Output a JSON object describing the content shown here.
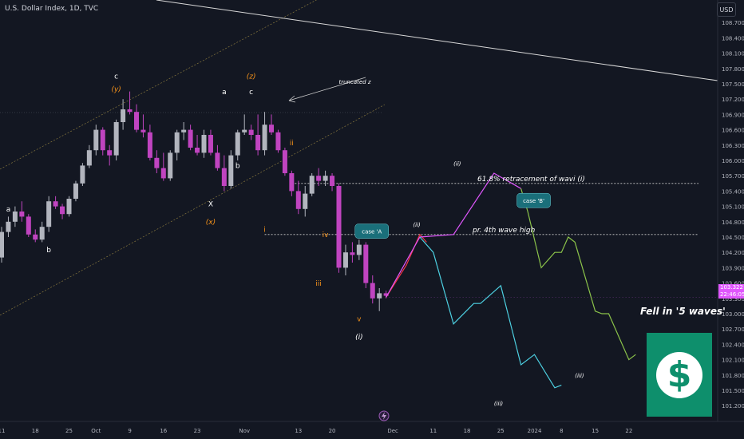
{
  "header": {
    "title": "U.S. Dollar Index, 1D, TVC",
    "currency": "USD"
  },
  "price_tag": {
    "value": "103.322",
    "countdown": "22:46:05"
  },
  "overlay": {
    "fell_text": "Fell in '5 waves'",
    "dollar_symbol": "$"
  },
  "colors": {
    "background": "#131722",
    "bull": "#b2b5be",
    "bear": "#c044c0",
    "orange": "#f7931a",
    "pink": "#e056fd",
    "red": "#f23645",
    "cyan": "#4dd0e1",
    "green": "#8bc34a",
    "teal_callout": "#1a6f7a",
    "dollar_green": "#0e8f6c"
  },
  "chart_data": {
    "type": "candlestick",
    "title": "U.S. Dollar Index, 1D, TVC",
    "ylim": [
      101.0,
      109.0
    ],
    "y_ticks": [
      101.2,
      101.5,
      101.8,
      102.1,
      102.4,
      102.7,
      103.0,
      103.3,
      103.6,
      103.9,
      104.2,
      104.5,
      104.8,
      105.1,
      105.4,
      105.7,
      106.0,
      106.3,
      106.6,
      106.9,
      107.2,
      107.5,
      107.8,
      108.1,
      108.4,
      108.7
    ],
    "y_tick_labels": [
      "101.200",
      "101.500",
      "101.800",
      "102.100",
      "102.400",
      "102.700",
      "103.000",
      "103.300",
      "103.600",
      "103.900",
      "104.200",
      "104.500",
      "104.800",
      "105.100",
      "105.400",
      "105.700",
      "106.000",
      "106.300",
      "106.600",
      "106.900",
      "107.200",
      "107.500",
      "107.800",
      "108.100",
      "108.400",
      "108.700"
    ],
    "x_tick_labels": [
      {
        "label": "11",
        "day": 0
      },
      {
        "label": "18",
        "day": 5
      },
      {
        "label": "25",
        "day": 10
      },
      {
        "label": "Oct",
        "day": 14
      },
      {
        "label": "9",
        "day": 19
      },
      {
        "label": "16",
        "day": 24
      },
      {
        "label": "23",
        "day": 29
      },
      {
        "label": "Nov",
        "day": 36
      },
      {
        "label": "13",
        "day": 44
      },
      {
        "label": "20",
        "day": 49
      },
      {
        "label": "Dec",
        "day": 58
      },
      {
        "label": "11",
        "day": 64
      },
      {
        "label": "18",
        "day": 69
      },
      {
        "label": "25",
        "day": 74
      },
      {
        "label": "2024",
        "day": 79
      },
      {
        "label": "8",
        "day": 83
      },
      {
        "label": "15",
        "day": 88
      },
      {
        "label": "22",
        "day": 93
      }
    ],
    "candles": [
      {
        "o": 104.1,
        "h": 104.7,
        "l": 104.0,
        "c": 104.6
      },
      {
        "o": 104.6,
        "h": 104.9,
        "l": 104.5,
        "c": 104.8
      },
      {
        "o": 104.8,
        "h": 105.1,
        "l": 104.7,
        "c": 105.0
      },
      {
        "o": 105.0,
        "h": 105.2,
        "l": 104.8,
        "c": 104.9
      },
      {
        "o": 104.9,
        "h": 104.95,
        "l": 104.5,
        "c": 104.55
      },
      {
        "o": 104.55,
        "h": 104.65,
        "l": 104.4,
        "c": 104.45
      },
      {
        "o": 104.45,
        "h": 104.8,
        "l": 104.4,
        "c": 104.7
      },
      {
        "o": 104.7,
        "h": 105.3,
        "l": 104.6,
        "c": 105.2
      },
      {
        "o": 105.2,
        "h": 105.3,
        "l": 105.05,
        "c": 105.1
      },
      {
        "o": 105.1,
        "h": 105.15,
        "l": 104.85,
        "c": 104.95
      },
      {
        "o": 104.95,
        "h": 105.3,
        "l": 104.9,
        "c": 105.25
      },
      {
        "o": 105.25,
        "h": 105.6,
        "l": 105.2,
        "c": 105.55
      },
      {
        "o": 105.55,
        "h": 105.95,
        "l": 105.5,
        "c": 105.9
      },
      {
        "o": 105.9,
        "h": 106.3,
        "l": 105.85,
        "c": 106.2
      },
      {
        "o": 106.2,
        "h": 106.7,
        "l": 106.1,
        "c": 106.6
      },
      {
        "o": 106.6,
        "h": 106.65,
        "l": 106.1,
        "c": 106.2
      },
      {
        "o": 106.2,
        "h": 106.3,
        "l": 105.9,
        "c": 106.1
      },
      {
        "o": 106.1,
        "h": 106.8,
        "l": 106.0,
        "c": 106.75
      },
      {
        "o": 106.75,
        "h": 107.2,
        "l": 106.6,
        "c": 107.0
      },
      {
        "o": 107.0,
        "h": 107.35,
        "l": 106.9,
        "c": 106.95
      },
      {
        "o": 106.95,
        "h": 107.1,
        "l": 106.55,
        "c": 106.6
      },
      {
        "o": 106.6,
        "h": 106.9,
        "l": 106.45,
        "c": 106.55
      },
      {
        "o": 106.55,
        "h": 106.7,
        "l": 106.0,
        "c": 106.05
      },
      {
        "o": 106.05,
        "h": 106.2,
        "l": 105.75,
        "c": 105.85
      },
      {
        "o": 105.85,
        "h": 106.15,
        "l": 105.6,
        "c": 105.65
      },
      {
        "o": 105.65,
        "h": 106.2,
        "l": 105.6,
        "c": 106.15
      },
      {
        "o": 106.15,
        "h": 106.6,
        "l": 106.0,
        "c": 106.55
      },
      {
        "o": 106.55,
        "h": 106.75,
        "l": 106.4,
        "c": 106.6
      },
      {
        "o": 106.6,
        "h": 106.7,
        "l": 106.2,
        "c": 106.25
      },
      {
        "o": 106.25,
        "h": 106.5,
        "l": 106.1,
        "c": 106.15
      },
      {
        "o": 106.15,
        "h": 106.6,
        "l": 106.05,
        "c": 106.5
      },
      {
        "o": 106.5,
        "h": 106.6,
        "l": 106.1,
        "c": 106.15
      },
      {
        "o": 106.15,
        "h": 106.3,
        "l": 105.8,
        "c": 105.85
      },
      {
        "o": 105.85,
        "h": 106.1,
        "l": 105.4,
        "c": 105.5
      },
      {
        "o": 105.5,
        "h": 106.2,
        "l": 105.45,
        "c": 106.1
      },
      {
        "o": 106.1,
        "h": 106.6,
        "l": 106.0,
        "c": 106.55
      },
      {
        "o": 106.55,
        "h": 106.9,
        "l": 106.5,
        "c": 106.6
      },
      {
        "o": 106.6,
        "h": 106.7,
        "l": 106.4,
        "c": 106.5
      },
      {
        "o": 106.5,
        "h": 106.9,
        "l": 106.1,
        "c": 106.2
      },
      {
        "o": 106.2,
        "h": 106.95,
        "l": 106.1,
        "c": 106.7
      },
      {
        "o": 106.7,
        "h": 106.9,
        "l": 106.5,
        "c": 106.55
      },
      {
        "o": 106.55,
        "h": 106.6,
        "l": 106.15,
        "c": 106.2
      },
      {
        "o": 106.2,
        "h": 106.25,
        "l": 105.7,
        "c": 105.75
      },
      {
        "o": 105.75,
        "h": 105.8,
        "l": 105.3,
        "c": 105.4
      },
      {
        "o": 105.4,
        "h": 105.6,
        "l": 104.95,
        "c": 105.05
      },
      {
        "o": 105.05,
        "h": 105.5,
        "l": 104.9,
        "c": 105.35
      },
      {
        "o": 105.35,
        "h": 105.75,
        "l": 105.3,
        "c": 105.7
      },
      {
        "o": 105.7,
        "h": 105.85,
        "l": 105.5,
        "c": 105.6
      },
      {
        "o": 105.6,
        "h": 105.8,
        "l": 105.5,
        "c": 105.7
      },
      {
        "o": 105.7,
        "h": 105.75,
        "l": 105.4,
        "c": 105.5
      },
      {
        "o": 105.5,
        "h": 105.55,
        "l": 103.8,
        "c": 103.9
      },
      {
        "o": 103.9,
        "h": 104.35,
        "l": 103.75,
        "c": 104.2
      },
      {
        "o": 104.2,
        "h": 104.4,
        "l": 104.0,
        "c": 104.15
      },
      {
        "o": 104.15,
        "h": 104.45,
        "l": 104.05,
        "c": 104.35
      },
      {
        "o": 104.35,
        "h": 104.4,
        "l": 103.5,
        "c": 103.6
      },
      {
        "o": 103.6,
        "h": 103.75,
        "l": 103.2,
        "c": 103.3
      },
      {
        "o": 103.3,
        "h": 103.5,
        "l": 103.05,
        "c": 103.4
      },
      {
        "o": 103.4,
        "h": 103.45,
        "l": 103.3,
        "c": 103.35
      }
    ],
    "projections": [
      {
        "name": "red",
        "color": "#f23645",
        "points": [
          [
            57,
            103.32
          ],
          [
            60,
            103.95
          ],
          [
            62,
            104.55
          ],
          [
            63,
            104.4
          ]
        ]
      },
      {
        "name": "pink",
        "color": "#e056fd",
        "points": [
          [
            57,
            103.32
          ],
          [
            62,
            104.5
          ],
          [
            67,
            104.55
          ],
          [
            73,
            105.75
          ],
          [
            77,
            105.45
          ]
        ]
      },
      {
        "name": "cyan",
        "color": "#4dd0e1",
        "points": [
          [
            62,
            104.5
          ],
          [
            64,
            104.2
          ],
          [
            67,
            102.8
          ],
          [
            70,
            103.2
          ],
          [
            71,
            103.2
          ],
          [
            74,
            103.55
          ],
          [
            77,
            102.0
          ],
          [
            79,
            102.2
          ],
          [
            82,
            101.55
          ],
          [
            83,
            101.6
          ]
        ]
      },
      {
        "name": "green",
        "color": "#8bc34a",
        "points": [
          [
            77,
            105.45
          ],
          [
            78,
            105.0
          ],
          [
            80,
            103.9
          ],
          [
            82,
            104.2
          ],
          [
            83,
            104.2
          ],
          [
            84,
            104.5
          ],
          [
            85,
            104.4
          ],
          [
            88,
            103.05
          ],
          [
            89,
            103.0
          ],
          [
            90,
            103.0
          ],
          [
            93,
            102.1
          ],
          [
            94,
            102.2
          ]
        ]
      }
    ],
    "levels": [
      {
        "label": "61.8% retracement of wavi (i)",
        "value": 105.55,
        "from_day": 43
      },
      {
        "label": "pr. 4th wave high",
        "value": 104.55,
        "from_day": 39
      }
    ],
    "annotations": [
      {
        "text": "a",
        "day": 1,
        "value": 105.0,
        "color": "#ffffff"
      },
      {
        "text": "b",
        "day": 7,
        "value": 104.2,
        "color": "#ffffff"
      },
      {
        "text": "c",
        "day": 17,
        "value": 107.6,
        "color": "#ffffff"
      },
      {
        "text": "(y)",
        "day": 17,
        "value": 107.35,
        "color": "#f7931a"
      },
      {
        "text": "X",
        "day": 31,
        "value": 105.1,
        "color": "#ffffff"
      },
      {
        "text": "(x)",
        "day": 31,
        "value": 104.75,
        "color": "#f7931a"
      },
      {
        "text": "a",
        "day": 33,
        "value": 107.3,
        "color": "#ffffff"
      },
      {
        "text": "(z)",
        "day": 37,
        "value": 107.6,
        "color": "#f7931a"
      },
      {
        "text": "c",
        "day": 37,
        "value": 107.3,
        "color": "#ffffff"
      },
      {
        "text": "b",
        "day": 35,
        "value": 105.85,
        "color": "#ffffff"
      },
      {
        "text": "truncated z",
        "day": 50,
        "value": 107.5,
        "color": "#ffffff"
      },
      {
        "text": "ii",
        "day": 43,
        "value": 106.3,
        "color": "#f7931a"
      },
      {
        "text": "i",
        "day": 39,
        "value": 104.6,
        "color": "#f7931a"
      },
      {
        "text": "iv",
        "day": 48,
        "value": 104.5,
        "color": "#f7931a"
      },
      {
        "text": "iii",
        "day": 47,
        "value": 103.55,
        "color": "#f7931a"
      },
      {
        "text": "v",
        "day": 53,
        "value": 102.85,
        "color": "#f7931a"
      },
      {
        "text": "(i)",
        "day": 53,
        "value": 102.5,
        "color": "#ffffff"
      },
      {
        "text": "(ii)",
        "day": 61,
        "value": 104.7,
        "color": "#ffffff"
      },
      {
        "text": "(ii)",
        "day": 67,
        "value": 105.9,
        "color": "#ffffff"
      },
      {
        "text": "(iii)",
        "day": 73,
        "value": 101.2,
        "color": "#ffffff"
      },
      {
        "text": "(iii)",
        "day": 85,
        "value": 101.75,
        "color": "#ffffff"
      }
    ],
    "callouts": [
      {
        "text": "case 'A",
        "day": 55,
        "value": 104.6
      },
      {
        "text": "case 'B'",
        "day": 79,
        "value": 105.2
      }
    ]
  }
}
